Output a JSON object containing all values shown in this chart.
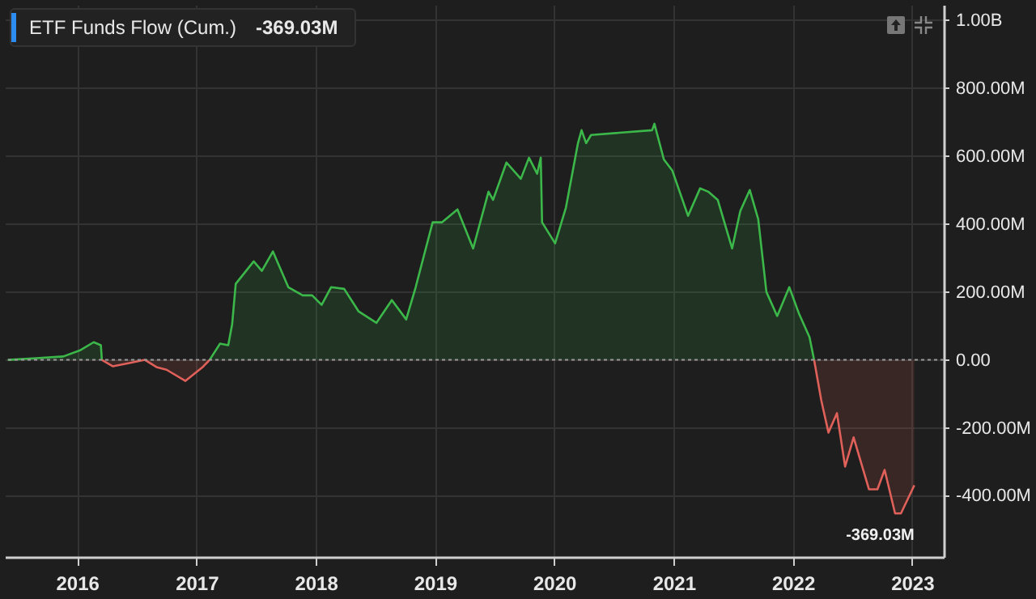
{
  "chart_data": {
    "type": "area",
    "title": "ETF Funds Flow (Cum.)",
    "annotations": [
      "-369.03M",
      {
        "text": "-369.03M",
        "x": "2023-01-08",
        "y": -369030000
      }
    ],
    "series": [
      {
        "color": "#3cb84a",
        "x": [
          "2015-06-03",
          "2015-08-29",
          "2015-11-20",
          "2016-01-12",
          "2016-02-21",
          "2016-03-14",
          "2016-03-17"
        ],
        "values": [
          0,
          5000000,
          10000000,
          29000000,
          52000000,
          43000000,
          0
        ]
      },
      {
        "color": "#e0605a",
        "x": [
          "2016-03-17",
          "2016-04-20",
          "2016-06-06",
          "2016-07-27",
          "2016-09-02",
          "2016-10-01",
          "2016-11-28",
          "2017-01-19",
          "2017-02-10"
        ],
        "values": [
          0,
          -19000000,
          -10000000,
          0,
          -22000000,
          -29000000,
          -62000000,
          -22000000,
          0
        ]
      },
      {
        "color": "#3cb84a",
        "x": [
          "2017-02-10",
          "2017-03-14",
          "2017-04-08",
          "2017-04-20",
          "2017-05-01",
          "2017-06-25",
          "2017-07-20",
          "2017-08-23",
          "2017-10-09",
          "2017-11-22",
          "2017-12-21",
          "2018-01-19",
          "2018-02-17",
          "2018-03-29",
          "2018-05-12",
          "2018-07-06",
          "2018-08-22",
          "2018-10-05",
          "2018-11-03",
          "2018-12-25",
          "2019-01-23",
          "2019-03-11",
          "2019-04-28",
          "2019-06-14",
          "2019-06-28",
          "2019-08-08",
          "2019-09-21",
          "2019-10-16",
          "2019-11-10",
          "2019-11-21",
          "2019-11-25",
          "2020-01-04",
          "2020-02-06",
          "2020-03-14",
          "2020-03-25",
          "2020-04-08",
          "2020-04-23",
          "2020-10-27",
          "2020-11-03",
          "2020-12-02",
          "2020-12-28",
          "2021-02-14",
          "2021-03-23",
          "2021-04-17",
          "2021-05-16",
          "2021-06-29",
          "2021-07-24",
          "2021-08-22",
          "2021-09-17",
          "2021-10-12",
          "2021-11-14",
          "2021-12-21",
          "2022-01-19",
          "2022-02-21",
          "2022-03-07"
        ],
        "values": [
          0,
          48000000,
          43000000,
          105000000,
          224000000,
          290000000,
          262000000,
          319000000,
          214000000,
          190000000,
          190000000,
          162000000,
          214000000,
          209000000,
          143000000,
          109000000,
          176000000,
          119000000,
          214000000,
          405000000,
          405000000,
          443000000,
          328000000,
          495000000,
          471000000,
          581000000,
          533000000,
          595000000,
          548000000,
          595000000,
          405000000,
          343000000,
          448000000,
          638000000,
          676000000,
          638000000,
          662000000,
          676000000,
          695000000,
          590000000,
          557000000,
          424000000,
          505000000,
          495000000,
          471000000,
          328000000,
          438000000,
          500000000,
          414000000,
          200000000,
          129000000,
          214000000,
          138000000,
          67000000,
          0
        ]
      },
      {
        "color": "#e0605a",
        "x": [
          "2022-03-07",
          "2022-03-29",
          "2022-04-20",
          "2022-05-16",
          "2022-06-10",
          "2022-07-06",
          "2022-08-22",
          "2022-09-17",
          "2022-10-09",
          "2022-11-10",
          "2022-11-28",
          "2023-01-08"
        ],
        "values": [
          0,
          -119000000,
          -214000000,
          -157000000,
          -314000000,
          -228000000,
          -381000000,
          -381000000,
          -324000000,
          -452000000,
          -452000000,
          -369030000
        ]
      }
    ],
    "xlim": [
      "2015-05-25",
      "2023-04-08"
    ],
    "xticks": [
      {
        "value": "2016-01-01",
        "label": "2016"
      },
      {
        "value": "2017-01-01",
        "label": "2017"
      },
      {
        "value": "2018-01-01",
        "label": "2018"
      },
      {
        "value": "2019-01-01",
        "label": "2019"
      },
      {
        "value": "2020-01-01",
        "label": "2020"
      },
      {
        "value": "2021-01-01",
        "label": "2021"
      },
      {
        "value": "2022-01-01",
        "label": "2022"
      },
      {
        "value": "2023-01-01",
        "label": "2023"
      }
    ],
    "ylim": [
      -580000000,
      1045000000
    ],
    "yticks": [
      {
        "value": -400000000,
        "label": "-400.00M"
      },
      {
        "value": -200000000,
        "label": "-200.00M"
      },
      {
        "value": 0,
        "label": "0.00"
      },
      {
        "value": 200000000,
        "label": "200.00M"
      },
      {
        "value": 400000000,
        "label": "400.00M"
      },
      {
        "value": 600000000,
        "label": "600.00M"
      },
      {
        "value": 800000000,
        "label": "800.00M"
      },
      {
        "value": 1000000000,
        "label": "1.00B"
      }
    ],
    "ref_lines": [
      {
        "axis": "y",
        "value": 0,
        "color": "#9a9a9a",
        "line_style": "dotted"
      }
    ],
    "grid": true
  }
}
